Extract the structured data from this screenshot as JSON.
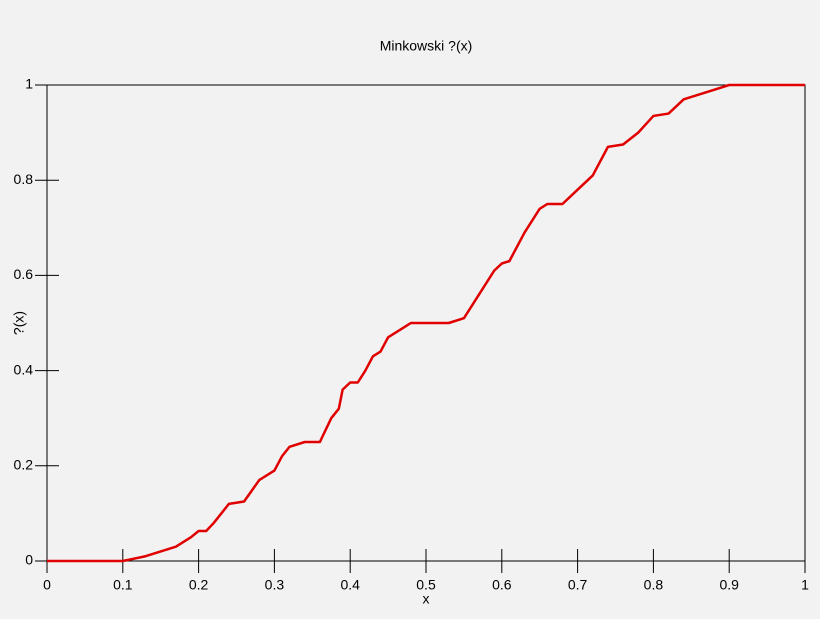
{
  "chart_data": {
    "type": "line",
    "title": "Minkowski ?(x)",
    "x_label": "x",
    "y_label": "?(x)",
    "x": [
      0,
      0.1,
      0.13,
      0.17,
      0.19,
      0.2,
      0.21,
      0.22,
      0.24,
      0.26,
      0.28,
      0.3,
      0.31,
      0.32,
      0.34,
      0.36,
      0.375,
      0.385,
      0.39,
      0.4,
      0.41,
      0.42,
      0.43,
      0.44,
      0.45,
      0.47,
      0.48,
      0.53,
      0.55,
      0.57,
      0.59,
      0.6,
      0.61,
      0.63,
      0.65,
      0.66,
      0.68,
      0.7,
      0.72,
      0.74,
      0.76,
      0.78,
      0.8,
      0.82,
      0.84,
      0.86,
      0.88,
      0.9,
      1
    ],
    "series": [
      {
        "color": "#e00000",
        "values": [
          0,
          0,
          0.01,
          0.03,
          0.05,
          0.063,
          0.063,
          0.08,
          0.12,
          0.125,
          0.17,
          0.19,
          0.22,
          0.24,
          0.25,
          0.25,
          0.3,
          0.32,
          0.36,
          0.375,
          0.375,
          0.4,
          0.43,
          0.44,
          0.47,
          0.49,
          0.5,
          0.5,
          0.51,
          0.56,
          0.61,
          0.625,
          0.63,
          0.69,
          0.74,
          0.75,
          0.75,
          0.78,
          0.81,
          0.87,
          0.875,
          0.9,
          0.935,
          0.94,
          0.97,
          0.98,
          0.99,
          1,
          1
        ]
      }
    ],
    "xlim": [
      0,
      1
    ],
    "ylim": [
      0,
      1
    ],
    "xticks": [
      0,
      0.1,
      0.2,
      0.3,
      0.4,
      0.5,
      0.6,
      0.7,
      0.8,
      0.9,
      1
    ],
    "yticks": [
      0,
      0.2,
      0.4,
      0.6,
      0.8,
      1
    ]
  }
}
